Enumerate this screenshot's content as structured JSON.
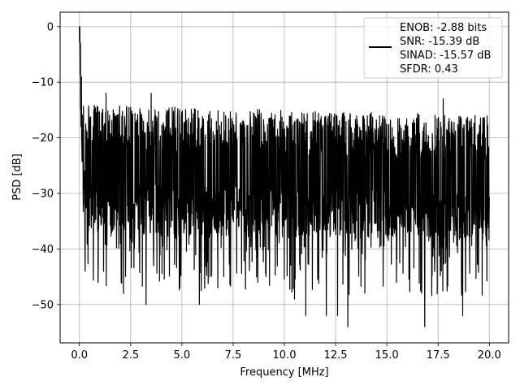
{
  "chart_data": {
    "type": "line",
    "title": "",
    "xlabel": "Frequency [MHz]",
    "ylabel": "PSD [dB]",
    "xlim": [
      -0.94,
      20.94
    ],
    "ylim": [
      -56.9,
      2.6
    ],
    "xticks": [
      0.0,
      2.5,
      5.0,
      7.5,
      10.0,
      12.5,
      15.0,
      17.5,
      20.0
    ],
    "xtick_labels": [
      "0.0",
      "2.5",
      "5.0",
      "7.5",
      "10.0",
      "12.5",
      "15.0",
      "17.5",
      "20.0"
    ],
    "yticks": [
      0,
      -10,
      -20,
      -30,
      -40,
      -50
    ],
    "ytick_labels": [
      "0",
      "−10",
      "−20",
      "−30",
      "−40",
      "−50"
    ],
    "grid": true,
    "legend_position": "top-right",
    "legend_entries": [
      "ENOB: -2.88 bits",
      "SNR: -15.39 dB",
      "SINAD: -15.57 dB",
      "SFDR: 0.43"
    ],
    "line_color": "#000000",
    "series": [
      {
        "x_start": 0.0,
        "x_end": 20.0,
        "n_points": 2000,
        "peak": {
          "x": 0.02,
          "y": 0.0
        },
        "noise_mean_db": -25,
        "noise_min_db": -54,
        "noise_max_db": -11,
        "notable_spikes": [
          {
            "x": 0.05,
            "y": -3
          },
          {
            "x": 0.1,
            "y": -9
          },
          {
            "x": 0.28,
            "y": -44
          },
          {
            "x": 2.04,
            "y": -46
          },
          {
            "x": 2.15,
            "y": -48
          },
          {
            "x": 3.25,
            "y": -50
          },
          {
            "x": 4.9,
            "y": -47
          },
          {
            "x": 5.85,
            "y": -50
          },
          {
            "x": 6.75,
            "y": -47
          },
          {
            "x": 8.7,
            "y": -46
          },
          {
            "x": 9.1,
            "y": -45
          },
          {
            "x": 10.5,
            "y": -49
          },
          {
            "x": 11.05,
            "y": -52
          },
          {
            "x": 12.05,
            "y": -52
          },
          {
            "x": 12.6,
            "y": -52
          },
          {
            "x": 13.1,
            "y": -54
          },
          {
            "x": 16.85,
            "y": -54
          },
          {
            "x": 18.7,
            "y": -52
          },
          {
            "x": 17.75,
            "y": -13
          },
          {
            "x": 3.5,
            "y": -12
          },
          {
            "x": 1.3,
            "y": -12
          }
        ]
      }
    ]
  }
}
